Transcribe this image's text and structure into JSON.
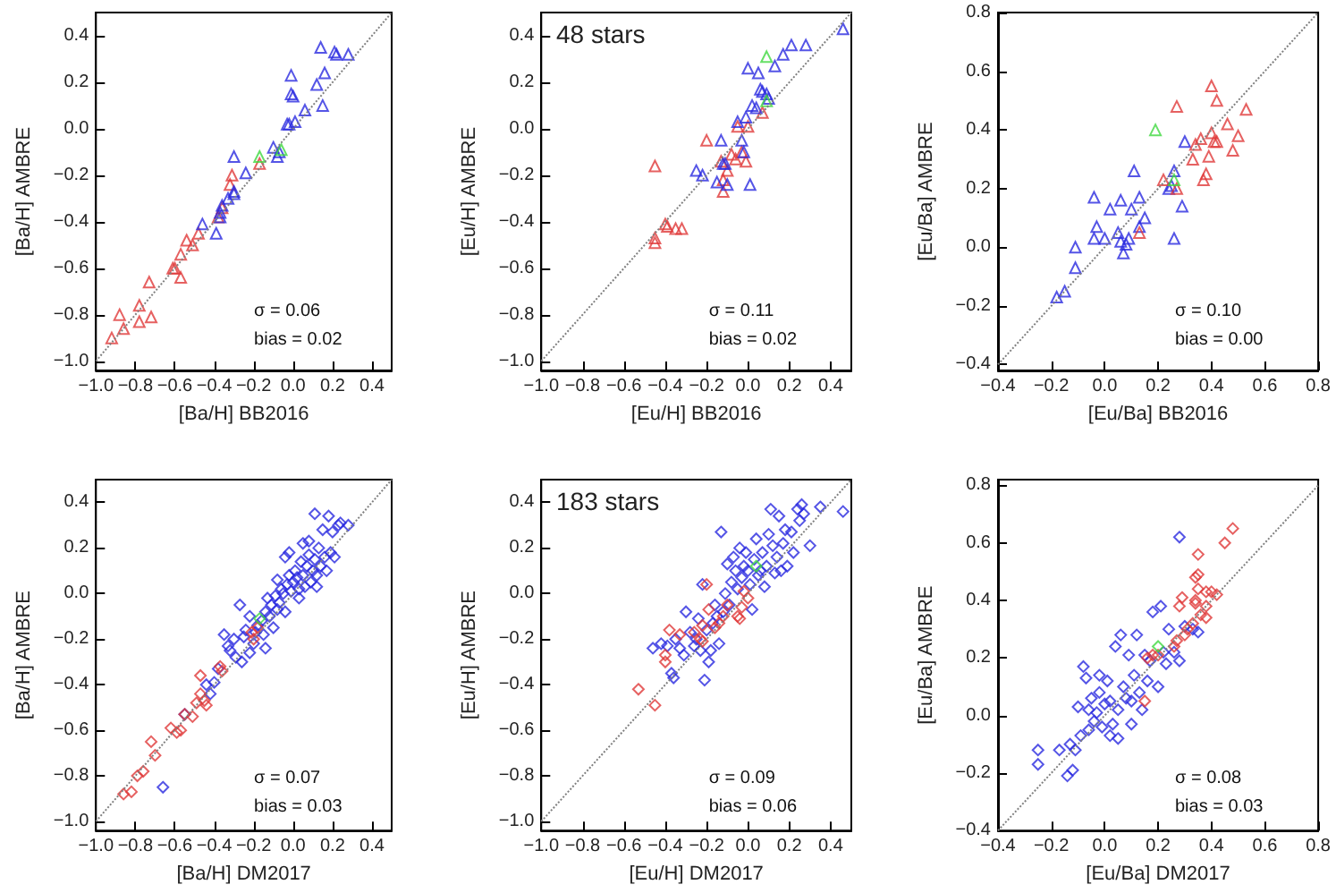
{
  "chart_data": [
    {
      "type": "scatter",
      "marker": "triangle",
      "xlabel": "[Ba/H] BB2016",
      "ylabel": "[Ba/H] AMBRE",
      "annotations": [
        "σ = 0.06",
        "bias = 0.02"
      ],
      "xlim": [
        -1.0,
        0.5
      ],
      "ylim": [
        -1.04,
        0.5
      ],
      "xticks": [
        {
          "value": -1.0,
          "label": "−1.0"
        },
        {
          "value": -0.8,
          "label": "−0.8"
        },
        {
          "value": -0.6,
          "label": "−0.6"
        },
        {
          "value": -0.4,
          "label": "−0.4"
        },
        {
          "value": -0.2,
          "label": "−0.2"
        },
        {
          "value": 0,
          "label": "0.0"
        },
        0.2,
        0.4
      ],
      "yticks": [
        {
          "value": -1.0,
          "label": "−1.0"
        },
        {
          "value": -0.8,
          "label": "−0.8"
        },
        {
          "value": -0.6,
          "label": "−0.6"
        },
        {
          "value": -0.4,
          "label": "−0.4"
        },
        {
          "value": -0.2,
          "label": "−0.2"
        },
        {
          "value": 0,
          "label": "0.0"
        },
        0.2,
        0.4
      ],
      "series": [
        {
          "type": "line",
          "marker": "none",
          "line_style": "dotted",
          "color": "#808080",
          "x": [
            -1.0,
            0.5
          ],
          "values": [
            -1.0,
            0.5
          ]
        },
        {
          "color": "#e03a3a",
          "x": [
            -0.92,
            -0.88,
            -0.86,
            -0.78,
            -0.78,
            -0.72,
            -0.73,
            -0.61,
            -0.6,
            -0.57,
            -0.57,
            -0.54,
            -0.51,
            -0.48,
            -0.38,
            -0.36,
            -0.32,
            -0.31,
            -0.17
          ],
          "values": [
            -0.9,
            -0.8,
            -0.86,
            -0.76,
            -0.83,
            -0.81,
            -0.66,
            -0.6,
            -0.6,
            -0.54,
            -0.64,
            -0.48,
            -0.5,
            -0.45,
            -0.38,
            -0.34,
            -0.24,
            -0.2,
            -0.15
          ]
        },
        {
          "color": "#2a2ae0",
          "x": [
            -0.3,
            -0.36,
            -0.37,
            -0.37,
            -0.39,
            -0.46,
            -0.33,
            -0.3,
            -0.3,
            -0.24,
            -0.1,
            -0.08,
            -0.07,
            -0.03,
            -0.02,
            0.01,
            0.06,
            -0.01,
            0.0,
            -0.01,
            0.12,
            0.15,
            0.16,
            0.14,
            0.21,
            0.22,
            0.28
          ],
          "values": [
            -0.12,
            -0.33,
            -0.36,
            -0.38,
            -0.45,
            -0.41,
            -0.3,
            -0.27,
            -0.28,
            -0.19,
            -0.08,
            -0.12,
            -0.1,
            0.02,
            0.02,
            0.03,
            0.08,
            0.15,
            0.14,
            0.23,
            0.19,
            0.1,
            0.24,
            0.35,
            0.33,
            0.32,
            0.32
          ]
        },
        {
          "color": "#40d840",
          "x": [
            -0.17,
            -0.06
          ],
          "values": [
            -0.12,
            -0.09
          ]
        }
      ]
    },
    {
      "type": "scatter",
      "marker": "triangle",
      "xlabel": "[Eu/H] BB2016",
      "ylabel": "[Eu/H] AMBRE",
      "annotations": [
        "48 stars",
        "σ = 0.11",
        "bias = 0.02"
      ],
      "xlim": [
        -1.0,
        0.5
      ],
      "ylim": [
        -1.04,
        0.5
      ],
      "xticks": [
        {
          "value": -1.0,
          "label": "−1.0"
        },
        {
          "value": -0.8,
          "label": "−0.8"
        },
        {
          "value": -0.6,
          "label": "−0.6"
        },
        {
          "value": -0.4,
          "label": "−0.4"
        },
        {
          "value": -0.2,
          "label": "−0.2"
        },
        {
          "value": 0,
          "label": "0.0"
        },
        0.2,
        0.4
      ],
      "yticks": [
        {
          "value": -1.0,
          "label": "−1.0"
        },
        {
          "value": -0.8,
          "label": "−0.8"
        },
        {
          "value": -0.6,
          "label": "−0.6"
        },
        {
          "value": -0.4,
          "label": "−0.4"
        },
        {
          "value": -0.2,
          "label": "−0.2"
        },
        {
          "value": 0,
          "label": "0.0"
        },
        0.2,
        0.4
      ],
      "series": [
        {
          "type": "line",
          "marker": "none",
          "line_style": "dotted",
          "color": "#808080",
          "x": [
            -1.0,
            0.5
          ],
          "values": [
            -1.0,
            0.5
          ]
        },
        {
          "color": "#e03a3a",
          "x": [
            -0.45,
            -0.45,
            -0.45,
            -0.4,
            -0.39,
            -0.35,
            -0.32,
            -0.2,
            -0.13,
            -0.12,
            -0.12,
            -0.1,
            -0.08,
            -0.06,
            -0.05,
            -0.03,
            0.0,
            -0.01,
            0.07
          ],
          "values": [
            -0.49,
            -0.47,
            -0.16,
            -0.41,
            -0.42,
            -0.43,
            -0.43,
            -0.05,
            -0.14,
            -0.22,
            -0.27,
            -0.18,
            -0.11,
            -0.13,
            0.01,
            -0.1,
            0.01,
            -0.14,
            0.07
          ]
        },
        {
          "color": "#2a2ae0",
          "x": [
            -0.11,
            -0.05,
            -0.15,
            -0.25,
            -0.22,
            -0.13,
            -0.1,
            -0.12,
            -0.03,
            -0.02,
            -0.01,
            0.0,
            0.01,
            0.02,
            0.05,
            0.06,
            0.07,
            0.09,
            0.1,
            0.13,
            0.17,
            0.21,
            0.28,
            0.46,
            0.04
          ],
          "values": [
            -0.15,
            0.03,
            -0.23,
            -0.18,
            -0.2,
            -0.05,
            -0.24,
            -0.15,
            -0.05,
            -0.1,
            0.05,
            0.26,
            -0.24,
            0.1,
            0.24,
            0.17,
            0.16,
            0.15,
            0.13,
            0.27,
            0.32,
            0.36,
            0.36,
            0.43,
            0.09
          ]
        },
        {
          "color": "#40d840",
          "x": [
            0.09,
            0.09
          ],
          "values": [
            0.31,
            0.12
          ]
        }
      ]
    },
    {
      "type": "scatter",
      "marker": "triangle",
      "xlabel": "[Eu/Ba] BB2016",
      "ylabel": "[Eu/Ba] AMBRE",
      "annotations": [
        "σ = 0.10",
        "bias = 0.00"
      ],
      "xlim": [
        -0.4,
        0.8
      ],
      "ylim": [
        -0.42,
        0.8
      ],
      "xticks": [
        {
          "value": -0.4,
          "label": "−0.4"
        },
        {
          "value": -0.2,
          "label": "−0.2"
        },
        {
          "value": 0,
          "label": "0.0"
        },
        0.2,
        0.4,
        0.6,
        0.8
      ],
      "yticks": [
        {
          "value": -0.4,
          "label": "−0.4"
        },
        {
          "value": -0.2,
          "label": "−0.2"
        },
        {
          "value": 0,
          "label": "0.0"
        },
        0.2,
        0.4,
        0.6,
        0.8
      ],
      "series": [
        {
          "type": "line",
          "marker": "none",
          "line_style": "dotted",
          "color": "#808080",
          "x": [
            -0.4,
            0.8
          ],
          "values": [
            -0.4,
            0.8
          ]
        },
        {
          "color": "#2a2ae0",
          "x": [
            -0.18,
            -0.15,
            -0.11,
            -0.11,
            -0.04,
            -0.04,
            -0.03,
            0.0,
            0.02,
            0.05,
            0.06,
            0.06,
            0.07,
            0.08,
            0.09,
            0.1,
            0.11,
            0.13,
            0.13,
            0.15,
            0.24,
            0.25,
            0.26,
            0.26,
            0.29,
            0.3
          ],
          "values": [
            -0.17,
            -0.15,
            -0.07,
            0.0,
            0.17,
            0.03,
            0.07,
            0.03,
            0.13,
            0.05,
            0.16,
            0.02,
            -0.02,
            0.01,
            0.03,
            0.13,
            0.26,
            0.17,
            0.07,
            0.1,
            0.2,
            0.21,
            0.26,
            0.03,
            0.14,
            0.36
          ]
        },
        {
          "color": "#e03a3a",
          "x": [
            0.13,
            0.22,
            0.27,
            0.27,
            0.33,
            0.34,
            0.36,
            0.37,
            0.38,
            0.39,
            0.4,
            0.4,
            0.41,
            0.42,
            0.42,
            0.46,
            0.48,
            0.5,
            0.53
          ],
          "values": [
            0.05,
            0.23,
            0.2,
            0.48,
            0.3,
            0.35,
            0.37,
            0.23,
            0.25,
            0.31,
            0.39,
            0.55,
            0.36,
            0.36,
            0.5,
            0.42,
            0.33,
            0.38,
            0.47
          ]
        },
        {
          "color": "#40d840",
          "x": [
            0.19,
            0.26
          ],
          "values": [
            0.4,
            0.23
          ]
        }
      ]
    },
    {
      "type": "scatter",
      "marker": "diamond",
      "xlabel": "[Ba/H] DM2017",
      "ylabel": "[Ba/H] AMBRE",
      "annotations": [
        "σ = 0.07",
        "bias = 0.03"
      ],
      "xlim": [
        -1.0,
        0.5
      ],
      "ylim": [
        -1.04,
        0.5
      ],
      "xticks": [
        {
          "value": -1.0,
          "label": "−1.0"
        },
        {
          "value": -0.8,
          "label": "−0.8"
        },
        {
          "value": -0.6,
          "label": "−0.6"
        },
        {
          "value": -0.4,
          "label": "−0.4"
        },
        {
          "value": -0.2,
          "label": "−0.2"
        },
        {
          "value": 0,
          "label": "0.0"
        },
        0.2,
        0.4
      ],
      "yticks": [
        {
          "value": -1.0,
          "label": "−1.0"
        },
        {
          "value": -0.8,
          "label": "−0.8"
        },
        {
          "value": -0.6,
          "label": "−0.6"
        },
        {
          "value": -0.4,
          "label": "−0.4"
        },
        {
          "value": -0.2,
          "label": "−0.2"
        },
        {
          "value": 0,
          "label": "0.0"
        },
        0.2,
        0.4
      ],
      "series": [
        {
          "type": "line",
          "marker": "none",
          "line_style": "dotted",
          "color": "#808080",
          "x": [
            -1.0,
            0.5
          ],
          "values": [
            -1.0,
            0.5
          ]
        },
        {
          "color": "#2a2ae0",
          "x": [
            -0.66,
            -0.55,
            -0.44,
            -0.42,
            -0.4,
            -0.38,
            -0.35,
            -0.33,
            -0.32,
            -0.3,
            -0.29,
            -0.27,
            -0.26,
            -0.25,
            -0.24,
            -0.22,
            -0.22,
            -0.2,
            -0.19,
            -0.18,
            -0.16,
            -0.15,
            -0.14,
            -0.14,
            -0.13,
            -0.12,
            -0.11,
            -0.1,
            -0.09,
            -0.08,
            -0.08,
            -0.07,
            -0.06,
            -0.05,
            -0.04,
            -0.04,
            -0.03,
            -0.02,
            -0.01,
            0.0,
            0.01,
            0.02,
            0.03,
            0.04,
            0.05,
            0.06,
            0.07,
            0.08,
            0.08,
            0.09,
            0.1,
            0.11,
            0.11,
            0.12,
            0.13,
            0.14,
            0.15,
            0.16,
            0.17,
            0.18,
            0.19,
            0.2,
            0.21,
            0.23,
            0.24,
            0.28,
            0.05,
            -0.02,
            0.03,
            0.12
          ],
          "values": [
            -0.85,
            -0.53,
            -0.4,
            -0.44,
            -0.39,
            -0.33,
            -0.18,
            -0.23,
            -0.25,
            -0.2,
            -0.28,
            -0.05,
            -0.3,
            -0.19,
            -0.16,
            -0.1,
            -0.26,
            -0.22,
            -0.17,
            -0.14,
            -0.12,
            -0.18,
            -0.08,
            -0.24,
            -0.02,
            -0.1,
            -0.05,
            -0.15,
            -0.01,
            -0.07,
            0.06,
            -0.04,
            0.02,
            0.0,
            -0.08,
            0.16,
            0.04,
            0.08,
            0.01,
            0.05,
            0.1,
            0.07,
            0.02,
            0.14,
            0.08,
            0.03,
            0.12,
            0.17,
            0.23,
            0.05,
            0.1,
            0.15,
            0.35,
            0.08,
            0.2,
            0.12,
            0.28,
            0.16,
            0.1,
            0.34,
            0.18,
            0.27,
            0.16,
            0.3,
            0.31,
            0.3,
            0.22,
            0.18,
            -0.02,
            0.03
          ]
        },
        {
          "color": "#e03a3a",
          "x": [
            -0.86,
            -0.82,
            -0.79,
            -0.76,
            -0.72,
            -0.7,
            -0.62,
            -0.59,
            -0.57,
            -0.55,
            -0.51,
            -0.49,
            -0.47,
            -0.45,
            -0.47,
            -0.44,
            -0.36,
            -0.37,
            -0.2,
            -0.18,
            -0.21
          ],
          "values": [
            -0.88,
            -0.87,
            -0.8,
            -0.78,
            -0.65,
            -0.71,
            -0.59,
            -0.61,
            -0.6,
            -0.53,
            -0.54,
            -0.48,
            -0.44,
            -0.47,
            -0.36,
            -0.49,
            -0.34,
            -0.32,
            -0.2,
            -0.15,
            -0.17
          ]
        },
        {
          "color": "#40d840",
          "x": [
            -0.17
          ],
          "values": [
            -0.11
          ]
        }
      ]
    },
    {
      "type": "scatter",
      "marker": "diamond",
      "xlabel": "[Eu/H] DM2017",
      "ylabel": "[Eu/H] AMBRE",
      "annotations": [
        "183 stars",
        "σ = 0.09",
        "bias = 0.06"
      ],
      "xlim": [
        -1.0,
        0.5
      ],
      "ylim": [
        -1.04,
        0.5
      ],
      "xticks": [
        {
          "value": -1.0,
          "label": "−1.0"
        },
        {
          "value": -0.8,
          "label": "−0.8"
        },
        {
          "value": -0.6,
          "label": "−0.6"
        },
        {
          "value": -0.4,
          "label": "−0.4"
        },
        {
          "value": -0.2,
          "label": "−0.2"
        },
        {
          "value": 0,
          "label": "0.0"
        },
        0.2,
        0.4
      ],
      "yticks": [
        {
          "value": -1.0,
          "label": "−1.0"
        },
        {
          "value": -0.8,
          "label": "−0.8"
        },
        {
          "value": -0.6,
          "label": "−0.6"
        },
        {
          "value": -0.4,
          "label": "−0.4"
        },
        {
          "value": -0.2,
          "label": "−0.2"
        },
        {
          "value": 0,
          "label": "0.0"
        },
        0.2,
        0.4
      ],
      "series": [
        {
          "type": "line",
          "marker": "none",
          "line_style": "dotted",
          "color": "#808080",
          "x": [
            -1.0,
            0.5
          ],
          "values": [
            -1.0,
            0.5
          ]
        },
        {
          "color": "#2a2ae0",
          "x": [
            -0.46,
            -0.42,
            -0.39,
            -0.37,
            -0.36,
            -0.35,
            -0.33,
            -0.31,
            -0.3,
            -0.28,
            -0.26,
            -0.25,
            -0.24,
            -0.23,
            -0.22,
            -0.21,
            -0.2,
            -0.19,
            -0.18,
            -0.17,
            -0.16,
            -0.15,
            -0.14,
            -0.13,
            -0.12,
            -0.11,
            -0.1,
            -0.09,
            -0.08,
            -0.07,
            -0.06,
            -0.05,
            -0.04,
            -0.03,
            -0.02,
            -0.01,
            0.0,
            0.01,
            0.02,
            0.03,
            0.04,
            0.05,
            0.06,
            0.07,
            0.08,
            0.09,
            0.1,
            0.11,
            0.12,
            0.13,
            0.14,
            0.15,
            0.16,
            0.17,
            0.18,
            0.19,
            0.21,
            0.22,
            0.24,
            0.25,
            0.26,
            0.27,
            0.3,
            0.35,
            0.46
          ],
          "values": [
            -0.24,
            -0.22,
            -0.23,
            -0.35,
            -0.37,
            -0.2,
            -0.24,
            -0.27,
            -0.08,
            -0.17,
            -0.23,
            -0.2,
            -0.11,
            -0.25,
            0.04,
            -0.38,
            -0.16,
            -0.3,
            -0.25,
            -0.13,
            -0.05,
            -0.1,
            -0.22,
            0.27,
            -0.08,
            0.0,
            0.13,
            -0.05,
            0.05,
            0.16,
            0.1,
            0.02,
            0.2,
            0.07,
            0.12,
            0.18,
            0.1,
            0.04,
            -0.07,
            0.15,
            0.24,
            0.08,
            0.1,
            0.18,
            0.03,
            0.12,
            0.26,
            0.37,
            0.21,
            0.09,
            0.16,
            0.34,
            0.1,
            0.22,
            0.28,
            0.12,
            0.27,
            0.18,
            0.37,
            0.32,
            0.39,
            0.35,
            0.21,
            0.38,
            0.36
          ]
        },
        {
          "color": "#e03a3a",
          "x": [
            -0.53,
            -0.45,
            -0.38,
            -0.4,
            -0.4,
            -0.33,
            -0.26,
            -0.23,
            -0.22,
            -0.22,
            -0.2,
            -0.19,
            -0.16,
            -0.14,
            -0.12,
            -0.1,
            -0.05,
            -0.03,
            -0.02,
            0.0,
            -0.04
          ],
          "values": [
            -0.42,
            -0.49,
            -0.16,
            -0.27,
            -0.3,
            -0.18,
            -0.17,
            -0.2,
            -0.14,
            -0.21,
            0.04,
            -0.07,
            -0.15,
            -0.13,
            -0.1,
            -0.05,
            -0.1,
            -0.06,
            0.01,
            -0.02,
            -0.11
          ]
        },
        {
          "color": "#40d840",
          "x": [
            0.04
          ],
          "values": [
            0.12
          ]
        }
      ]
    },
    {
      "type": "scatter",
      "marker": "diamond",
      "xlabel": "[Eu/Ba] DM2017",
      "ylabel": "[Eu/Ba] AMBRE",
      "annotations": [
        "σ = 0.08",
        "bias = 0.03"
      ],
      "xlim": [
        -0.4,
        0.8
      ],
      "ylim": [
        -0.4,
        0.82
      ],
      "xticks": [
        {
          "value": -0.4,
          "label": "−0.4"
        },
        {
          "value": -0.2,
          "label": "−0.2"
        },
        {
          "value": 0,
          "label": "0.0"
        },
        0.2,
        0.4,
        0.6,
        0.8
      ],
      "yticks": [
        {
          "value": -0.4,
          "label": "−0.4"
        },
        {
          "value": -0.2,
          "label": "−0.2"
        },
        {
          "value": 0,
          "label": "0.0"
        },
        0.2,
        0.4,
        0.6,
        0.8
      ],
      "series": [
        {
          "type": "line",
          "marker": "none",
          "line_style": "dotted",
          "color": "#808080",
          "x": [
            -0.4,
            0.8
          ],
          "values": [
            -0.4,
            0.8
          ]
        },
        {
          "color": "#2a2ae0",
          "x": [
            -0.25,
            -0.25,
            -0.17,
            -0.14,
            -0.13,
            -0.12,
            -0.11,
            -0.1,
            -0.09,
            -0.08,
            -0.07,
            -0.06,
            -0.05,
            -0.04,
            -0.03,
            -0.02,
            -0.01,
            0.0,
            0.01,
            0.02,
            0.03,
            0.04,
            0.05,
            0.06,
            0.07,
            0.08,
            0.09,
            0.1,
            0.11,
            0.12,
            0.13,
            0.14,
            0.15,
            0.16,
            0.17,
            0.18,
            0.2,
            0.21,
            0.22,
            0.23,
            0.24,
            0.26,
            0.28,
            0.28,
            0.3,
            0.33,
            0.35,
            0.02,
            -0.02,
            0.05,
            0.1,
            -0.06
          ],
          "values": [
            -0.12,
            -0.17,
            -0.12,
            -0.21,
            -0.1,
            -0.19,
            -0.12,
            0.03,
            -0.07,
            0.17,
            0.13,
            -0.05,
            0.06,
            -0.02,
            0.01,
            0.08,
            -0.04,
            0.04,
            0.12,
            0.05,
            -0.03,
            0.24,
            0.02,
            0.28,
            0.1,
            0.06,
            0.21,
            -0.03,
            0.14,
            0.28,
            0.08,
            0.02,
            0.21,
            0.12,
            0.19,
            0.36,
            0.1,
            0.38,
            0.22,
            0.18,
            0.3,
            0.22,
            0.62,
            0.19,
            0.31,
            0.3,
            0.29,
            -0.07,
            0.14,
            -0.08,
            0.05,
            0.02
          ]
        },
        {
          "color": "#e03a3a",
          "x": [
            0.15,
            0.16,
            0.18,
            0.2,
            0.26,
            0.27,
            0.28,
            0.29,
            0.3,
            0.31,
            0.33,
            0.34,
            0.34,
            0.34,
            0.35,
            0.35,
            0.35,
            0.36,
            0.38,
            0.38,
            0.4,
            0.42,
            0.45,
            0.48,
            0.38
          ],
          "values": [
            0.05,
            0.2,
            0.21,
            0.21,
            0.24,
            0.26,
            0.38,
            0.41,
            0.28,
            0.3,
            0.32,
            0.4,
            0.39,
            0.48,
            0.49,
            0.44,
            0.56,
            0.35,
            0.43,
            0.38,
            0.43,
            0.42,
            0.6,
            0.65,
            0.34
          ]
        },
        {
          "color": "#40d840",
          "x": [
            0.2
          ],
          "values": [
            0.24
          ]
        }
      ]
    }
  ]
}
